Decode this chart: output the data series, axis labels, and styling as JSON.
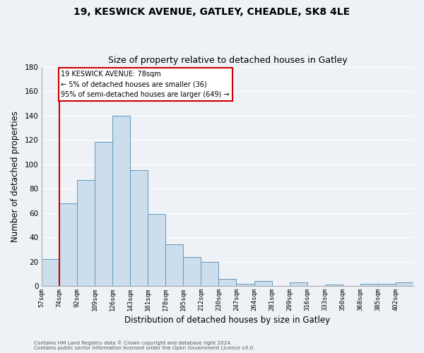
{
  "title1": "19, KESWICK AVENUE, GATLEY, CHEADLE, SK8 4LE",
  "title2": "Size of property relative to detached houses in Gatley",
  "xlabel": "Distribution of detached houses by size in Gatley",
  "ylabel": "Number of detached properties",
  "bin_labels": [
    "57sqm",
    "74sqm",
    "92sqm",
    "109sqm",
    "126sqm",
    "143sqm",
    "161sqm",
    "178sqm",
    "195sqm",
    "212sqm",
    "230sqm",
    "247sqm",
    "264sqm",
    "281sqm",
    "299sqm",
    "316sqm",
    "333sqm",
    "350sqm",
    "368sqm",
    "385sqm",
    "402sqm"
  ],
  "bar_heights": [
    22,
    68,
    87,
    118,
    140,
    95,
    59,
    34,
    24,
    20,
    6,
    2,
    4,
    0,
    3,
    0,
    1,
    0,
    2,
    2,
    3
  ],
  "bar_color": "#ccdded",
  "bar_edge_color": "#6699bb",
  "red_line_x": 1,
  "annotation_line1": "19 KESWICK AVENUE: 78sqm",
  "annotation_line2": "← 5% of detached houses are smaller (36)",
  "annotation_line3": "95% of semi-detached houses are larger (649) →",
  "annotation_box_facecolor": "#ffffff",
  "annotation_box_edgecolor": "#cc0000",
  "ylim": [
    0,
    180
  ],
  "yticks": [
    0,
    20,
    40,
    60,
    80,
    100,
    120,
    140,
    160,
    180
  ],
  "footer1": "Contains HM Land Registry data © Crown copyright and database right 2024.",
  "footer2": "Contains public sector information licensed under the Open Government Licence v3.0.",
  "bg_color": "#eef2f7",
  "grid_color": "#ffffff",
  "spine_color": "#aaaaaa"
}
